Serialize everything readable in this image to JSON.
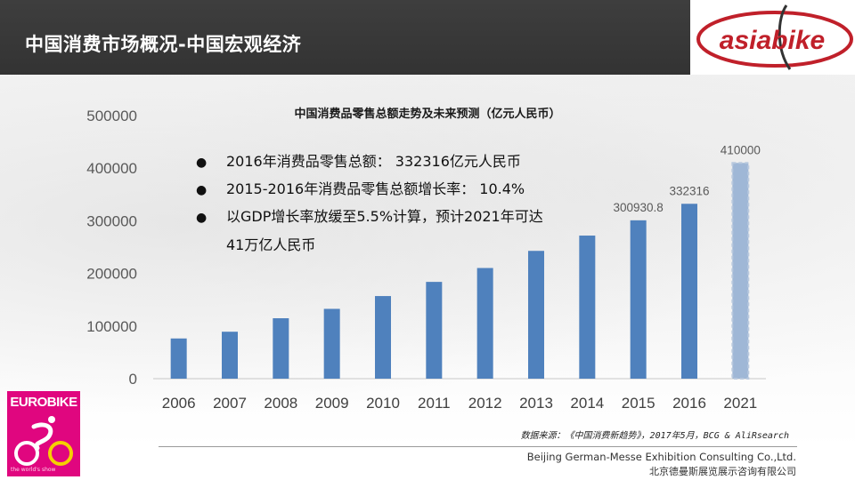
{
  "header": {
    "title": "中国消费市场概况-中国宏观经济"
  },
  "logos": {
    "asiabike": "asiabike",
    "eurobike": "EUROBIKE",
    "eurobike_tagline": "the world's show"
  },
  "bullets": [
    {
      "text": "2016年消费品零售总额： 332316亿元人民币"
    },
    {
      "text": "2015-2016年消费品零售总额增长率： 10.4%"
    },
    {
      "text": "以GDP增长率放缓至5.5%计算，预计2021年可达",
      "continuation": "41万亿人民币"
    }
  ],
  "footer": {
    "source": "数据来源：《中国消费新趋势》，2017年5月，BCG & AliRsearch",
    "company_en": "Beijing German-Messe Exhibition Consulting Co.,Ltd.",
    "company_cn": "北京德曼斯展览展示咨询有限公司"
  },
  "colors": {
    "bar": "#4f81bd",
    "forecast_bar": "#9fb7d6",
    "header_bg": "#383838",
    "eurobike_pink": "#e0067f",
    "asiabike_red": "#c0202a"
  },
  "chart_data": {
    "type": "bar",
    "title": "中国消费品零售总额走势及未来预测（亿元人民币）",
    "categories": [
      "2006",
      "2007",
      "2008",
      "2009",
      "2010",
      "2011",
      "2012",
      "2013",
      "2014",
      "2015",
      "2016",
      "2021"
    ],
    "values": [
      76410,
      89210,
      114830,
      132678,
      156998,
      183919,
      210307,
      242843,
      271896,
      300930.8,
      332316,
      410000
    ],
    "data_labels": {
      "9": "300930.8",
      "10": "332316",
      "11": "410000"
    },
    "forecast_index": 11,
    "ylim": [
      0,
      500000
    ],
    "yticks": [
      0,
      100000,
      200000,
      300000,
      400000,
      500000
    ],
    "grid": false,
    "legend": "none"
  }
}
